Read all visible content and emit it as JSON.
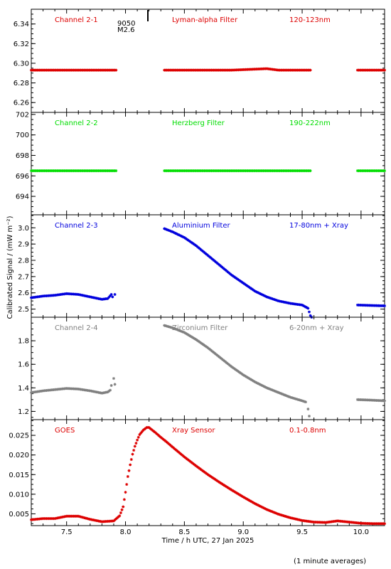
{
  "chart_data": {
    "type": "scatter",
    "x_axis": {
      "label": "Time / h UTC, 27 Jan 2025",
      "range": [
        7.2,
        10.2
      ],
      "ticks": [
        7.5,
        8.0,
        8.5,
        9.0,
        9.5,
        10.0
      ],
      "tick_labels": [
        "7.5",
        "8.0",
        "8.5",
        "9.0",
        "9.5",
        "10.0"
      ]
    },
    "y_axis_label": "Calibrated Signal / (mW m⁻²)",
    "footnote": "(1 minute averages)",
    "flare_marker": {
      "x": 8.19,
      "label_lines": [
        "9050",
        "M2.6"
      ]
    },
    "panels": [
      {
        "channel": "Channel 2-1",
        "filter": "Lyman-alpha Filter",
        "band": "120-123nm",
        "color": "#dd0000",
        "ylim": [
          6.25,
          6.355
        ],
        "ticks": [
          6.26,
          6.28,
          6.3,
          6.32,
          6.34
        ],
        "tick_labels": [
          "6.26",
          "6.28",
          "6.30",
          "6.32",
          "6.34"
        ],
        "segments": [
          {
            "x": [
              7.2,
              7.5,
              7.92
            ],
            "y": [
              6.293,
              6.293,
              6.293
            ]
          },
          {
            "x": [
              8.33,
              8.9,
              9.2,
              9.3,
              9.57
            ],
            "y": [
              6.293,
              6.293,
              6.2945,
              6.293,
              6.293
            ]
          },
          {
            "x": [
              9.97,
              10.2
            ],
            "y": [
              6.293,
              6.293
            ]
          }
        ]
      },
      {
        "channel": "Channel 2-2",
        "filter": "Herzberg Filter",
        "band": "190-222nm",
        "color": "#00dd00",
        "ylim": [
          692.2,
          702.2
        ],
        "ticks": [
          694,
          696,
          698,
          700,
          702
        ],
        "tick_labels": [
          "694",
          "696",
          "698",
          "700",
          "702"
        ],
        "segments": [
          {
            "x": [
              7.2,
              7.92
            ],
            "y": [
              696.5,
              696.5
            ]
          },
          {
            "x": [
              8.33,
              9.57
            ],
            "y": [
              696.5,
              696.5
            ]
          },
          {
            "x": [
              9.97,
              10.2
            ],
            "y": [
              696.5,
              696.5
            ]
          }
        ]
      },
      {
        "channel": "Channel 2-3",
        "filter": "Aluminium Filter",
        "band": "17-80nm + Xray",
        "color": "#0000dd",
        "ylim": [
          2.45,
          3.08
        ],
        "ticks": [
          2.5,
          2.6,
          2.7,
          2.8,
          2.9,
          3.0
        ],
        "tick_labels": [
          "2.5",
          "2.6",
          "2.7",
          "2.8",
          "2.9",
          "3.0"
        ],
        "segments": [
          {
            "x": [
              7.2,
              7.3,
              7.4,
              7.5,
              7.6,
              7.7,
              7.8,
              7.85,
              7.88
            ],
            "y": [
              2.57,
              2.58,
              2.585,
              2.595,
              2.59,
              2.575,
              2.56,
              2.565,
              2.59
            ]
          },
          {
            "x": [
              8.33,
              8.4,
              8.5,
              8.6,
              8.7,
              8.8,
              8.9,
              9.0,
              9.1,
              9.2,
              9.3,
              9.4,
              9.5,
              9.55,
              9.57
            ],
            "y": [
              2.995,
              2.975,
              2.94,
              2.89,
              2.83,
              2.77,
              2.71,
              2.66,
              2.61,
              2.575,
              2.55,
              2.535,
              2.525,
              2.505,
              2.46
            ]
          },
          {
            "x": [
              9.97,
              10.1,
              10.2
            ],
            "y": [
              2.525,
              2.522,
              2.52
            ]
          }
        ],
        "extra_points": [
          {
            "x": 7.89,
            "y": 2.575
          },
          {
            "x": 7.91,
            "y": 2.59
          },
          {
            "x": 9.58,
            "y": 2.45
          }
        ]
      },
      {
        "channel": "Channel 2-4",
        "filter": "Zirconium Filter",
        "band": "6-20nm + Xray",
        "color": "#808080",
        "ylim": [
          1.13,
          2.0
        ],
        "ticks": [
          1.2,
          1.4,
          1.6,
          1.8
        ],
        "tick_labels": [
          "1.2",
          "1.4",
          "1.6",
          "1.8"
        ],
        "segments": [
          {
            "x": [
              7.2,
              7.3,
              7.4,
              7.5,
              7.6,
              7.7,
              7.8,
              7.85,
              7.87
            ],
            "y": [
              1.36,
              1.375,
              1.385,
              1.395,
              1.39,
              1.375,
              1.355,
              1.365,
              1.38
            ]
          },
          {
            "x": [
              8.33,
              8.4,
              8.5,
              8.6,
              8.7,
              8.8,
              8.9,
              9.0,
              9.1,
              9.2,
              9.3,
              9.4,
              9.5,
              9.53
            ],
            "y": [
              1.93,
              1.91,
              1.87,
              1.81,
              1.74,
              1.66,
              1.58,
              1.51,
              1.45,
              1.4,
              1.36,
              1.32,
              1.29,
              1.28
            ]
          },
          {
            "x": [
              9.97,
              10.1,
              10.2
            ],
            "y": [
              1.3,
              1.295,
              1.29
            ]
          }
        ],
        "extra_points": [
          {
            "x": 7.88,
            "y": 1.42
          },
          {
            "x": 7.9,
            "y": 1.48
          },
          {
            "x": 7.91,
            "y": 1.43
          },
          {
            "x": 9.55,
            "y": 1.22
          },
          {
            "x": 9.56,
            "y": 1.16
          }
        ]
      },
      {
        "channel": "GOES",
        "filter": "Xray Sensor",
        "band": "0.1-0.8nm",
        "color": "#dd0000",
        "ylim": [
          0.002,
          0.029
        ],
        "ticks": [
          0.005,
          0.01,
          0.015,
          0.02,
          0.025
        ],
        "tick_labels": [
          "0.005",
          "0.010",
          "0.015",
          "0.020",
          "0.025"
        ],
        "segments": [
          {
            "x": [
              7.2,
              7.3,
              7.4,
              7.5,
              7.6,
              7.7,
              7.8,
              7.9,
              7.95,
              7.98,
              8.0,
              8.02,
              8.04,
              8.06,
              8.08,
              8.1,
              8.12,
              8.15,
              8.18,
              8.2,
              8.22,
              8.25,
              8.3,
              8.35,
              8.4,
              8.5,
              8.6,
              8.7,
              8.8,
              8.9,
              9.0,
              9.1,
              9.2,
              9.3,
              9.4,
              9.5,
              9.6,
              9.7,
              9.8,
              9.9,
              10.0,
              10.1,
              10.2
            ],
            "y": [
              0.0035,
              0.0038,
              0.0038,
              0.0044,
              0.0044,
              0.0036,
              0.003,
              0.0032,
              0.0045,
              0.0068,
              0.0105,
              0.0145,
              0.0175,
              0.0202,
              0.0222,
              0.0238,
              0.0252,
              0.0263,
              0.027,
              0.027,
              0.0265,
              0.0258,
              0.0245,
              0.0233,
              0.022,
              0.0195,
              0.0172,
              0.015,
              0.013,
              0.0111,
              0.0093,
              0.0076,
              0.0061,
              0.0049,
              0.004,
              0.0033,
              0.0029,
              0.0028,
              0.0032,
              0.0029,
              0.0026,
              0.0025,
              0.0025
            ]
          }
        ]
      }
    ]
  }
}
